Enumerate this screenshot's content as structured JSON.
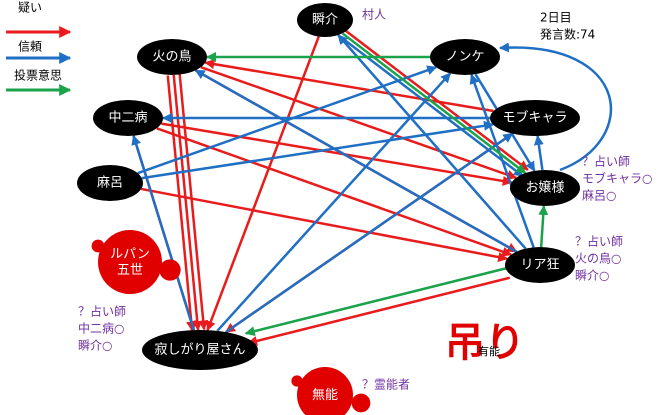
{
  "legend": [
    "疑い",
    "信頼",
    "投票意思"
  ],
  "day": "2日目",
  "post_count": "発言数:74",
  "nodes": [
    {
      "label": "瞬介"
    },
    {
      "label": "火の鳥"
    },
    {
      "label": "ノンケ"
    },
    {
      "label": "中二病"
    },
    {
      "label": "モブキャラ"
    },
    {
      "label": "麻呂"
    },
    {
      "label": "お嬢様"
    },
    {
      "label": "リア狂"
    },
    {
      "label": "寂しがり屋さん"
    }
  ],
  "dead": [
    {
      "label": "ルパン\n五世"
    },
    {
      "label": "無能"
    }
  ],
  "notes": [
    {
      "lines": [
        "村人"
      ]
    },
    {
      "lines": [
        "？占い師",
        "モブキャラ○",
        "麻呂○"
      ]
    },
    {
      "lines": [
        "？占い師",
        "火の鳥○",
        "瞬介○"
      ]
    },
    {
      "lines": [
        "？占い師",
        "中二病○",
        "瞬介○"
      ]
    },
    {
      "lines": [
        "？霊能者"
      ]
    }
  ],
  "hanged": "吊り",
  "capable": "有能"
}
